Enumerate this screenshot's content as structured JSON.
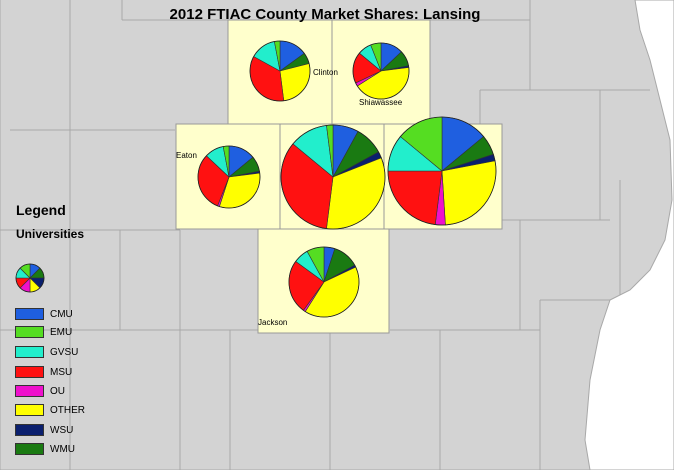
{
  "title": "2012 FTIAC County Market Shares: Lansing",
  "legend": {
    "title": "Legend",
    "subtitle": "Universities",
    "items": [
      {
        "label": "CMU",
        "color": "#1f5fe0"
      },
      {
        "label": "EMU",
        "color": "#55dd22"
      },
      {
        "label": "GVSU",
        "color": "#22eecc"
      },
      {
        "label": "MSU",
        "color": "#ff1111"
      },
      {
        "label": "OU",
        "color": "#ee11cc"
      },
      {
        "label": "OTHER",
        "color": "#ffff00"
      },
      {
        "label": "WSU",
        "color": "#0a1f6e"
      },
      {
        "label": "WMU",
        "color": "#1a7a12"
      }
    ]
  },
  "counties": [
    {
      "name": "Clinton",
      "shares": {
        "CMU": 15,
        "EMU": 3,
        "GVSU": 14,
        "MSU": 35,
        "OU": 0,
        "OTHER": 27,
        "WSU": 0,
        "WMU": 6
      }
    },
    {
      "name": "Shiawassee",
      "shares": {
        "CMU": 13,
        "EMU": 6,
        "GVSU": 8,
        "MSU": 18,
        "OU": 2,
        "OTHER": 43,
        "WSU": 1,
        "WMU": 9
      }
    },
    {
      "name": "Eaton",
      "shares": {
        "CMU": 14,
        "EMU": 3,
        "GVSU": 10,
        "MSU": 31,
        "OU": 1,
        "OTHER": 32,
        "WSU": 1,
        "WMU": 8
      }
    },
    {
      "name": "",
      "shares": {
        "CMU": 8,
        "EMU": 2,
        "GVSU": 12,
        "MSU": 34,
        "OU": 0,
        "OTHER": 33,
        "WSU": 2,
        "WMU": 9
      }
    },
    {
      "name": "",
      "shares": {
        "CMU": 14,
        "EMU": 14,
        "GVSU": 11,
        "MSU": 23,
        "OU": 3,
        "OTHER": 27,
        "WSU": 2,
        "WMU": 6
      }
    },
    {
      "name": "Jackson",
      "shares": {
        "CMU": 5,
        "EMU": 8,
        "GVSU": 7,
        "MSU": 25,
        "OU": 1,
        "OTHER": 41,
        "WSU": 1,
        "WMU": 12
      }
    }
  ]
}
